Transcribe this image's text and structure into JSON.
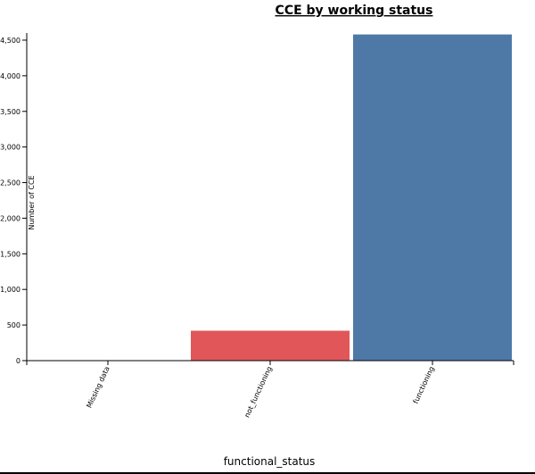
{
  "chart_data": {
    "type": "bar",
    "title": "CCE by working status",
    "xlabel": "functional_status",
    "ylabel": "Number of CCE",
    "categories": [
      "Missing data",
      "not_functioning",
      "functioning"
    ],
    "values": [
      0,
      420,
      4580
    ],
    "colors": [
      "#4e79a7",
      "#e15759",
      "#4e79a7"
    ],
    "ylim": [
      0,
      4600
    ],
    "yticks": [
      0,
      500,
      1000,
      1500,
      2000,
      2500,
      3000,
      3500,
      4000,
      4500
    ],
    "ytick_labels": [
      "0",
      "500",
      "1,000",
      "1,500",
      "2,000",
      "2,500",
      "3,000",
      "3,500",
      "4,000",
      "4,500"
    ],
    "grid": false,
    "legend": "none"
  }
}
